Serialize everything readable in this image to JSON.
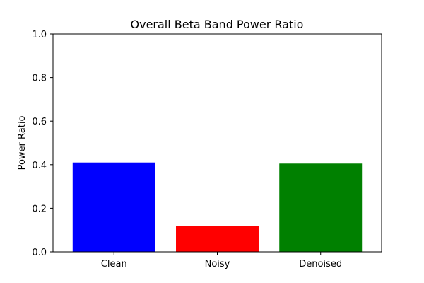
{
  "chart_data": {
    "type": "bar",
    "title": "Overall Beta Band Power Ratio",
    "xlabel": "",
    "ylabel": "Power Ratio",
    "categories": [
      "Clean",
      "Noisy",
      "Denoised"
    ],
    "values": [
      0.41,
      0.12,
      0.405
    ],
    "colors": [
      "#0000ff",
      "#ff0000",
      "#008000"
    ],
    "ylim": [
      0,
      1
    ],
    "yticks": [
      0.0,
      0.2,
      0.4,
      0.6,
      0.8,
      1.0
    ],
    "ytick_labels": [
      "0.0",
      "0.2",
      "0.4",
      "0.6",
      "0.8",
      "1.0"
    ],
    "grid": false,
    "legend": false
  }
}
